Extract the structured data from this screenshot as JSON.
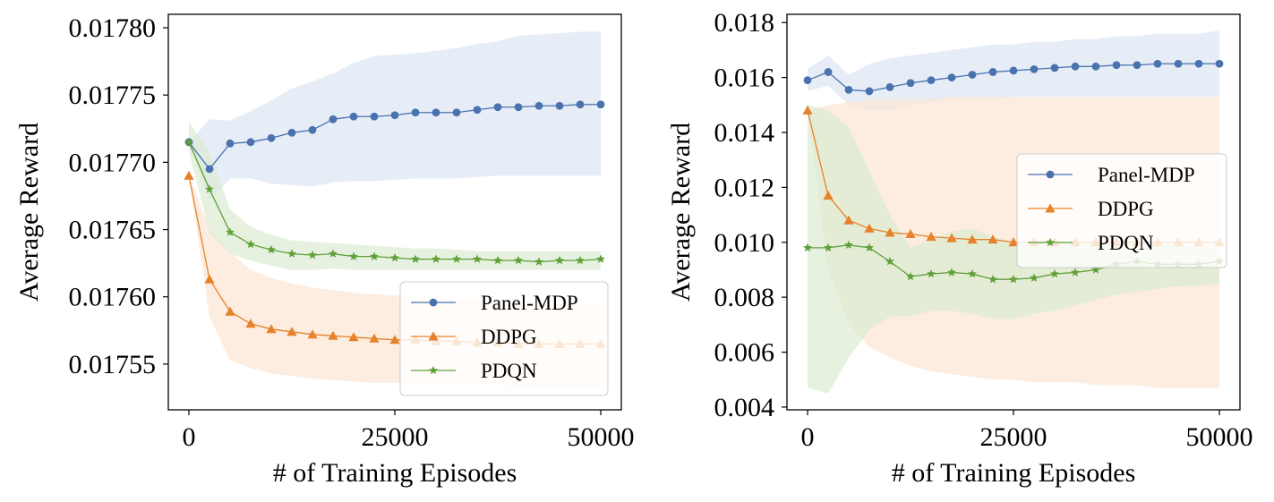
{
  "colors": {
    "panel_mdp": "#4a72ae",
    "ddpg": "#e6822b",
    "pdqn": "#5fa038",
    "panel_mdp_band": "#dbe5f3",
    "ddpg_band": "#fbe6d3",
    "pdqn_band": "#dcebd1"
  },
  "chart_data": [
    {
      "type": "line",
      "title": "",
      "xlabel": "# of Training Episodes",
      "ylabel": "Average Reward",
      "xlim": [
        -2500,
        52500
      ],
      "ylim": [
        0.017516,
        0.01781
      ],
      "xticks": [
        0,
        25000,
        50000
      ],
      "xtick_labels": [
        "0",
        "25000",
        "50000"
      ],
      "yticks": [
        0.01755,
        0.0176,
        0.01765,
        0.0177,
        0.01775,
        0.0178
      ],
      "ytick_labels": [
        "0.01755",
        "0.01760",
        "0.01765",
        "0.01770",
        "0.01775",
        "0.01780"
      ],
      "legend": "lower-right",
      "x": [
        0,
        2500,
        5000,
        7500,
        10000,
        12500,
        15000,
        17500,
        20000,
        22500,
        25000,
        27500,
        30000,
        32500,
        35000,
        37500,
        40000,
        42500,
        45000,
        47500,
        50000
      ],
      "series": [
        {
          "name": "Panel-MDP",
          "color_key": "panel_mdp",
          "marker": "circle",
          "values": [
            0.017715,
            0.017695,
            0.017714,
            0.017715,
            0.017718,
            0.017722,
            0.017724,
            0.017732,
            0.017734,
            0.017734,
            0.017735,
            0.017737,
            0.017737,
            0.017737,
            0.017739,
            0.017741,
            0.017741,
            0.017742,
            0.017742,
            0.017743,
            0.017743
          ],
          "lower": [
            0.017715,
            0.017672,
            0.017688,
            0.017688,
            0.017684,
            0.017683,
            0.017682,
            0.017685,
            0.017686,
            0.017686,
            0.017687,
            0.017688,
            0.017688,
            0.017688,
            0.017689,
            0.01769,
            0.01769,
            0.01769,
            0.01769,
            0.01769,
            0.01769
          ],
          "upper": [
            0.017715,
            0.017732,
            0.017731,
            0.017738,
            0.017746,
            0.017755,
            0.01776,
            0.017766,
            0.017774,
            0.017779,
            0.01778,
            0.017781,
            0.017783,
            0.017785,
            0.017788,
            0.01779,
            0.017794,
            0.017795,
            0.017796,
            0.017797,
            0.017797
          ]
        },
        {
          "name": "DDPG",
          "color_key": "ddpg",
          "marker": "triangle",
          "values": [
            0.01769,
            0.017613,
            0.017589,
            0.01758,
            0.017576,
            0.017574,
            0.017572,
            0.017571,
            0.01757,
            0.017569,
            0.017568,
            0.017568,
            0.017567,
            0.017567,
            0.017566,
            0.017566,
            0.017565,
            0.017565,
            0.017565,
            0.017565,
            0.017565
          ],
          "lower": [
            0.01769,
            0.017585,
            0.017553,
            0.017547,
            0.017543,
            0.017541,
            0.017539,
            0.017538,
            0.017537,
            0.017536,
            0.017536,
            0.017535,
            0.017535,
            0.017534,
            0.017534,
            0.017534,
            0.017533,
            0.017533,
            0.017533,
            0.017533,
            0.017532
          ],
          "upper": [
            0.01769,
            0.017651,
            0.017633,
            0.01762,
            0.017614,
            0.01761,
            0.017607,
            0.017605,
            0.017603,
            0.017602,
            0.017601,
            0.0176,
            0.017599,
            0.017598,
            0.017598,
            0.017597,
            0.017597,
            0.017596,
            0.017596,
            0.017596,
            0.017595
          ]
        },
        {
          "name": "PDQN",
          "color_key": "pdqn",
          "marker": "star",
          "values": [
            0.017715,
            0.01768,
            0.017648,
            0.017639,
            0.017635,
            0.017632,
            0.017631,
            0.017632,
            0.01763,
            0.01763,
            0.017629,
            0.017628,
            0.017628,
            0.017628,
            0.017628,
            0.017627,
            0.017627,
            0.017626,
            0.017627,
            0.017627,
            0.017628
          ],
          "lower": [
            0.017708,
            0.017648,
            0.017632,
            0.017627,
            0.017623,
            0.01762,
            0.01762,
            0.017621,
            0.01762,
            0.01762,
            0.01762,
            0.01762,
            0.01762,
            0.01762,
            0.01762,
            0.01762,
            0.01762,
            0.01762,
            0.01762,
            0.01762,
            0.01762
          ],
          "upper": [
            0.01773,
            0.017708,
            0.017665,
            0.017652,
            0.017646,
            0.017642,
            0.017641,
            0.01764,
            0.017639,
            0.017638,
            0.017637,
            0.017636,
            0.017636,
            0.017635,
            0.017634,
            0.017634,
            0.017634,
            0.017634,
            0.017634,
            0.017634,
            0.017634
          ]
        }
      ]
    },
    {
      "type": "line",
      "title": "",
      "xlabel": "# of Training Episodes",
      "ylabel": "Average Reward",
      "xlim": [
        -2500,
        52500
      ],
      "ylim": [
        0.0039,
        0.0183
      ],
      "xticks": [
        0,
        25000,
        50000
      ],
      "xtick_labels": [
        "0",
        "25000",
        "50000"
      ],
      "yticks": [
        0.004,
        0.006,
        0.008,
        0.01,
        0.012,
        0.014,
        0.016,
        0.018
      ],
      "ytick_labels": [
        "0.004",
        "0.006",
        "0.008",
        "0.010",
        "0.012",
        "0.014",
        "0.016",
        "0.018"
      ],
      "legend": "center-right",
      "x": [
        0,
        2500,
        5000,
        7500,
        10000,
        12500,
        15000,
        17500,
        20000,
        22500,
        25000,
        27500,
        30000,
        32500,
        35000,
        37500,
        40000,
        42500,
        45000,
        47500,
        50000
      ],
      "series": [
        {
          "name": "Panel-MDP",
          "color_key": "panel_mdp",
          "marker": "circle",
          "values": [
            0.0159,
            0.0162,
            0.01555,
            0.0155,
            0.01565,
            0.0158,
            0.0159,
            0.016,
            0.0161,
            0.0162,
            0.01625,
            0.0163,
            0.01635,
            0.0164,
            0.0164,
            0.01645,
            0.01645,
            0.0165,
            0.0165,
            0.0165,
            0.0165
          ],
          "lower": [
            0.0155,
            0.0157,
            0.015,
            0.0148,
            0.0148,
            0.015,
            0.0151,
            0.0152,
            0.0152,
            0.0152,
            0.0153,
            0.0153,
            0.0153,
            0.0153,
            0.0153,
            0.0153,
            0.0153,
            0.0153,
            0.0153,
            0.0153,
            0.0153
          ],
          "upper": [
            0.0163,
            0.0168,
            0.0161,
            0.0165,
            0.0167,
            0.0168,
            0.0169,
            0.017,
            0.0171,
            0.0172,
            0.0172,
            0.0173,
            0.0173,
            0.0174,
            0.0174,
            0.0175,
            0.0175,
            0.0176,
            0.0176,
            0.0176,
            0.0177
          ]
        },
        {
          "name": "DDPG",
          "color_key": "ddpg",
          "marker": "triangle",
          "values": [
            0.0148,
            0.0117,
            0.0108,
            0.0105,
            0.01035,
            0.0103,
            0.0102,
            0.01015,
            0.0101,
            0.0101,
            0.01,
            0.01,
            0.01,
            0.01,
            0.01,
            0.01,
            0.01,
            0.01,
            0.01,
            0.01,
            0.01
          ],
          "lower": [
            0.0148,
            0.009,
            0.007,
            0.0062,
            0.0058,
            0.0055,
            0.0053,
            0.0052,
            0.0051,
            0.005,
            0.005,
            0.0049,
            0.0049,
            0.0049,
            0.0048,
            0.0048,
            0.0048,
            0.0047,
            0.0047,
            0.0047,
            0.0047
          ],
          "upper": [
            0.0148,
            0.015,
            0.0151,
            0.0152,
            0.0152,
            0.0152,
            0.0152,
            0.0153,
            0.0153,
            0.0153,
            0.0153,
            0.0153,
            0.0153,
            0.0153,
            0.0153,
            0.0153,
            0.0153,
            0.0153,
            0.0153,
            0.0153,
            0.0153
          ]
        },
        {
          "name": "PDQN",
          "color_key": "pdqn",
          "marker": "star",
          "values": [
            0.0098,
            0.0098,
            0.0099,
            0.0098,
            0.0093,
            0.00875,
            0.00885,
            0.0089,
            0.00885,
            0.00865,
            0.00865,
            0.0087,
            0.00885,
            0.0089,
            0.009,
            0.0092,
            0.0093,
            0.0092,
            0.0092,
            0.0092,
            0.0093
          ],
          "lower": [
            0.0047,
            0.0045,
            0.0058,
            0.0068,
            0.0073,
            0.0073,
            0.0075,
            0.0075,
            0.0074,
            0.0072,
            0.0072,
            0.0074,
            0.0075,
            0.0077,
            0.0079,
            0.0081,
            0.0082,
            0.0083,
            0.0084,
            0.0084,
            0.0085
          ],
          "upper": [
            0.015,
            0.0148,
            0.0142,
            0.0126,
            0.011,
            0.0098,
            0.0101,
            0.0104,
            0.0105,
            0.0102,
            0.01,
            0.01,
            0.01,
            0.01,
            0.01,
            0.01,
            0.01,
            0.0099,
            0.0099,
            0.0098,
            0.0098
          ]
        }
      ]
    }
  ]
}
